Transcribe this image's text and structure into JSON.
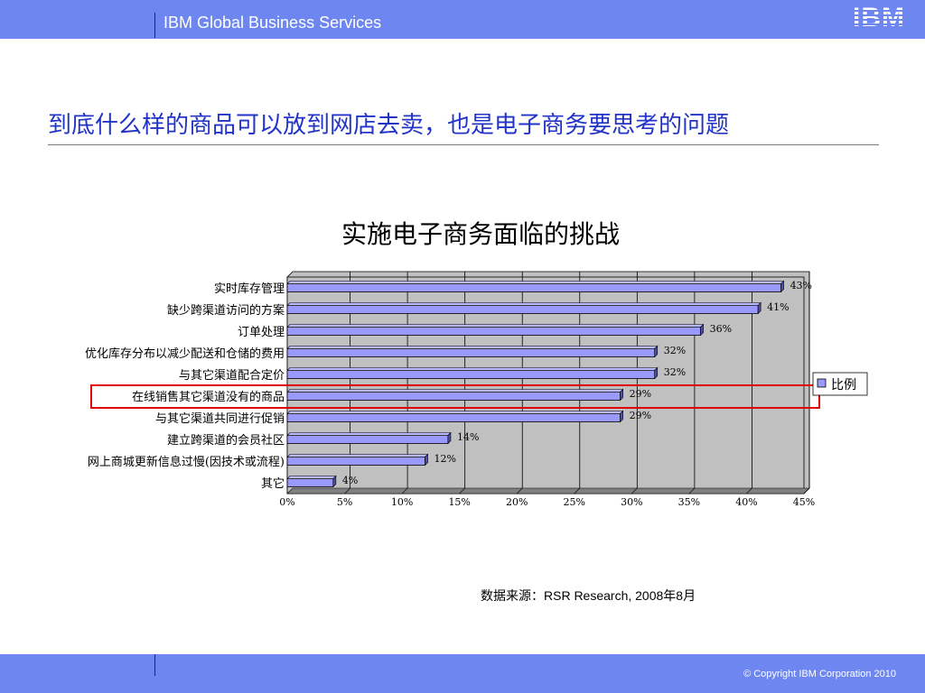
{
  "header": {
    "company": "IBM Global Business Services",
    "logo": "IBM"
  },
  "slide": {
    "title": "到底什么样的商品可以放到网店去卖，也是电子商务要思考的问题",
    "source": "数据来源：RSR Research, 2008年8月",
    "highlight_category": "在线销售其它渠道没有的商品"
  },
  "footer": {
    "copyright": "© Copyright IBM Corporation 2010"
  },
  "colors": {
    "bar": "#9999ff",
    "plot_bg": "#c0c0c0",
    "highlight": "#e00000",
    "band": "#6e87f0"
  },
  "chart_data": {
    "type": "bar",
    "orientation": "horizontal",
    "title": "实施电子商务面临的挑战",
    "categories": [
      "实时库存管理",
      "缺少跨渠道访问的方案",
      "订单处理",
      "优化库存分布以减少配送和仓储的费用",
      "与其它渠道配合定价",
      "在线销售其它渠道没有的商品",
      "与其它渠道共同进行促销",
      "建立跨渠道的会员社区",
      "网上商城更新信息过慢(因技术或流程)",
      "其它"
    ],
    "series": [
      {
        "name": "比例",
        "values": [
          43,
          41,
          36,
          32,
          32,
          29,
          29,
          14,
          12,
          4
        ],
        "labels": [
          "43%",
          "41%",
          "36%",
          "32%",
          "32%",
          "29%",
          "29%",
          "14%",
          "12%",
          "4%"
        ]
      }
    ],
    "x_ticks": [
      "0%",
      "5%",
      "10%",
      "15%",
      "20%",
      "25%",
      "30%",
      "35%",
      "40%",
      "45%"
    ],
    "xlim": [
      0,
      45
    ],
    "grid": true,
    "legend": "right"
  }
}
